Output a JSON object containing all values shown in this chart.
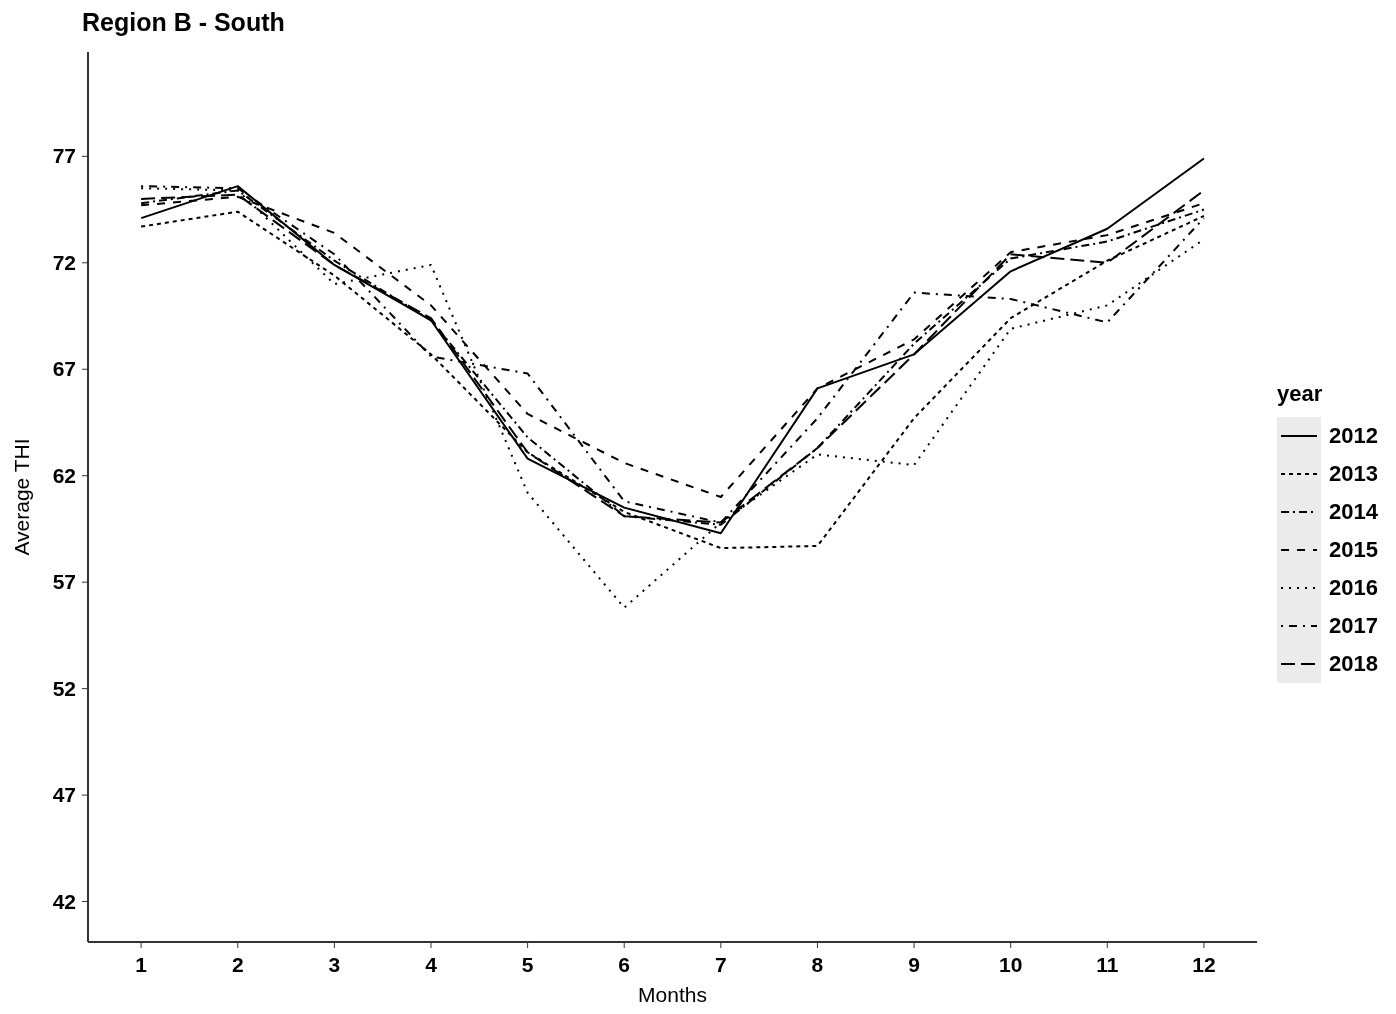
{
  "chart_data": {
    "type": "line",
    "title": "Region B - South",
    "xlabel": "Months",
    "ylabel": "Average THI",
    "legend_title": "year",
    "legend": "right",
    "marker": "none",
    "x": [
      1,
      2,
      3,
      4,
      5,
      6,
      7,
      8,
      9,
      10,
      11,
      12
    ],
    "xlim": [
      0.45,
      12.55
    ],
    "xticks": [
      1,
      2,
      3,
      4,
      5,
      6,
      7,
      8,
      9,
      10,
      11,
      12
    ],
    "ylim": [
      40.1,
      81.9
    ],
    "yticks": [
      42,
      47,
      52,
      57,
      62,
      67,
      72,
      77
    ],
    "series": [
      {
        "name": "2012",
        "color": "#000000",
        "line_style": "solid",
        "values": [
          74.1,
          75.6,
          71.9,
          69.3,
          62.8,
          60.5,
          59.3,
          66.1,
          67.7,
          71.6,
          73.6,
          76.9
        ]
      },
      {
        "name": "2013",
        "color": "#000000",
        "line_style": "dashed",
        "values": [
          73.7,
          74.4,
          71.4,
          67.7,
          63.1,
          60.3,
          58.6,
          58.7,
          64.7,
          69.4,
          72.1,
          74.2
        ]
      },
      {
        "name": "2014",
        "color": "#000000",
        "line_style": "longdash-short",
        "values": [
          74.8,
          75.4,
          72.1,
          69.3,
          63.8,
          60.1,
          59.7,
          63.3,
          68.2,
          72.2,
          73.0,
          74.5
        ]
      },
      {
        "name": "2015",
        "color": "#000000",
        "line_style": "dashed-wide",
        "values": [
          74.7,
          75.1,
          73.4,
          70.0,
          64.9,
          62.6,
          61.0,
          66.1,
          68.4,
          72.5,
          73.3,
          74.8
        ]
      },
      {
        "name": "2016",
        "color": "#000000",
        "line_style": "dotted",
        "values": [
          75.5,
          75.4,
          71.0,
          71.9,
          61.2,
          55.8,
          59.8,
          63.0,
          62.5,
          68.9,
          70.0,
          73.1
        ]
      },
      {
        "name": "2017",
        "color": "#000000",
        "line_style": "dotdash",
        "values": [
          75.6,
          75.5,
          72.4,
          67.6,
          66.8,
          60.8,
          59.8,
          64.7,
          70.6,
          70.3,
          69.2,
          74.1
        ]
      },
      {
        "name": "2018",
        "color": "#000000",
        "line_style": "longdash",
        "values": [
          75.0,
          75.2,
          71.9,
          69.4,
          63.1,
          60.1,
          59.8,
          63.3,
          67.7,
          72.4,
          72.0,
          75.4
        ]
      }
    ]
  }
}
